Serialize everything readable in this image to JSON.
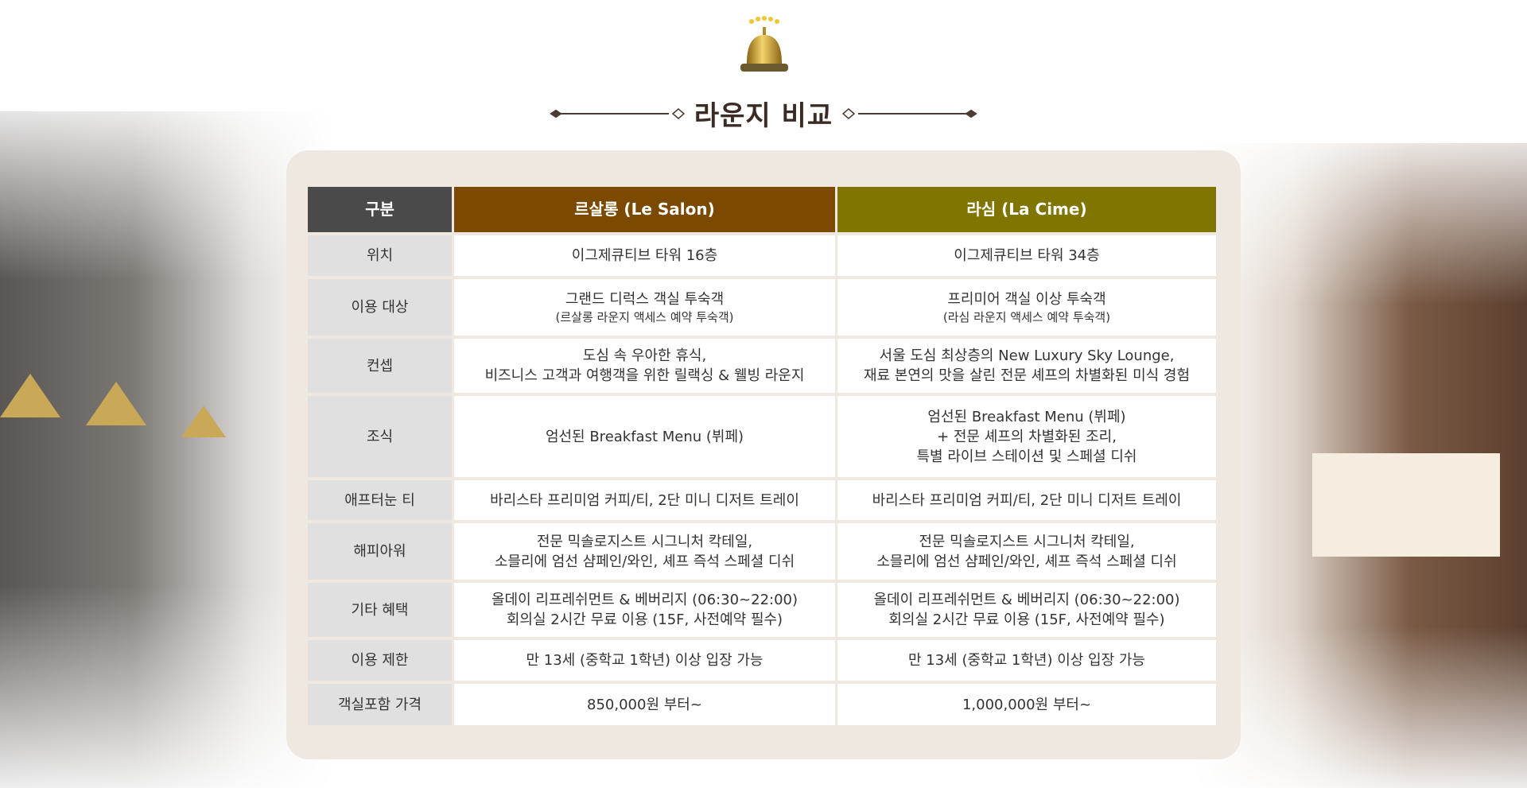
{
  "page": {
    "title": "라운지 비교"
  },
  "colors": {
    "header_label": "#4a4a4a",
    "header_le_salon": "#7b4a00",
    "header_la_cime": "#7f7500",
    "card_bg": "#efe8e1",
    "label_bg": "#e0e0e0"
  },
  "icons": {
    "bell": "service-bell-icon-with-five-stars"
  },
  "table": {
    "headers": [
      "구분",
      "르살롱 (Le Salon)",
      "라심 (La Cime)"
    ],
    "rows": [
      {
        "label": "위치",
        "le_salon": [
          "이그제큐티브 타워 16층"
        ],
        "la_cime": [
          "이그제큐티브 타워 34층"
        ]
      },
      {
        "label": "이용 대상",
        "le_salon": [
          "그랜드 디럭스 객실 투숙객",
          "(르살롱 라운지 액세스 예약 투숙객)"
        ],
        "la_cime": [
          "프리미어 객실 이상 투숙객",
          "(라심 라운지 액세스 예약 투숙객)"
        ]
      },
      {
        "label": "컨셉",
        "le_salon": [
          "도심 속 우아한 휴식,",
          "비즈니스 고객과 여행객을 위한 릴랙싱 & 웰빙 라운지"
        ],
        "la_cime": [
          "서울 도심 최상층의 New Luxury Sky Lounge,",
          "재료 본연의 맛을 살린 전문 셰프의 차별화된 미식 경험"
        ]
      },
      {
        "label": "조식",
        "le_salon": [
          "엄선된 Breakfast Menu (뷔페)"
        ],
        "la_cime": [
          "엄선된 Breakfast Menu (뷔페)",
          "+ 전문 셰프의 차별화된 조리,",
          "특별 라이브 스테이션 및 스페셜 디쉬"
        ]
      },
      {
        "label": "애프터눈 티",
        "le_salon": [
          "바리스타 프리미엄 커피/티, 2단 미니 디저트 트레이"
        ],
        "la_cime": [
          "바리스타 프리미엄 커피/티, 2단 미니 디저트 트레이"
        ]
      },
      {
        "label": "해피아워",
        "le_salon": [
          "전문 믹솔로지스트 시그니처 칵테일,",
          "소믈리에 엄선 샴페인/와인, 셰프 즉석 스페셜 디쉬"
        ],
        "la_cime": [
          "전문 믹솔로지스트 시그니처 칵테일,",
          "소믈리에 엄선 샴페인/와인, 셰프 즉석 스페셜 디쉬"
        ]
      },
      {
        "label": "기타 혜택",
        "le_salon": [
          "올데이 리프레쉬먼트 & 베버리지 (06:30~22:00)",
          "회의실 2시간 무료 이용 (15F, 사전예약 필수)"
        ],
        "la_cime": [
          "올데이 리프레쉬먼트 & 베버리지 (06:30~22:00)",
          "회의실 2시간 무료 이용 (15F, 사전예약 필수)"
        ]
      },
      {
        "label": "이용 제한",
        "le_salon": [
          "만 13세 (중학교 1학년) 이상 입장 가능"
        ],
        "la_cime": [
          "만 13세 (중학교 1학년) 이상 입장 가능"
        ]
      },
      {
        "label": "객실포함 가격",
        "le_salon": [
          "850,000원 부터~"
        ],
        "la_cime": [
          "1,000,000원 부터~"
        ]
      }
    ]
  }
}
